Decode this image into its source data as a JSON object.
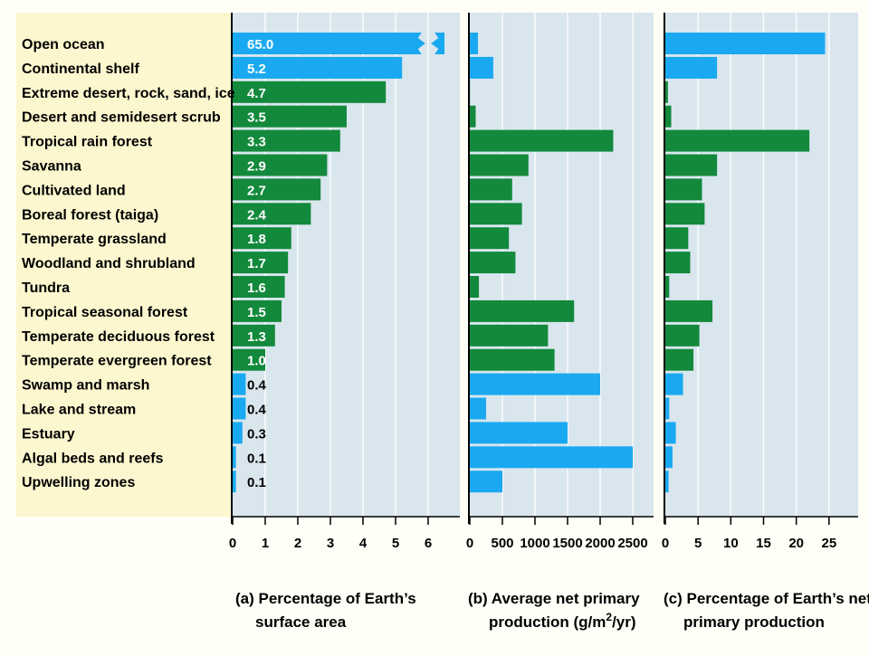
{
  "colors": {
    "background": "#fffef7",
    "label_area": "#fdf7cf",
    "panel_bg": "#d9e6ee",
    "gridline": "#ffffff",
    "aquatic": "#1aa9f0",
    "terrestrial": "#13893c",
    "axis": "#000000"
  },
  "chart_data": [
    {
      "type": "bar",
      "orientation": "horizontal",
      "panel_label": "(a) Percentage of Earth’s surface area",
      "xlabel_lines": [
        "(a) Percentage of Earth’s",
        "surface area"
      ],
      "xlim": [
        0,
        6.5
      ],
      "ticks": [
        0,
        1,
        2,
        3,
        4,
        5,
        6
      ],
      "axis_break": true,
      "categories": [
        "Open ocean",
        "Continental shelf",
        "Extreme desert, rock, sand, ice",
        "Desert and semidesert scrub",
        "Tropical rain forest",
        "Savanna",
        "Cultivated land",
        "Boreal forest (taiga)",
        "Temperate grassland",
        "Woodland and shrubland",
        "Tundra",
        "Tropical seasonal forest",
        "Temperate deciduous forest",
        "Temperate evergreen forest",
        "Swamp and marsh",
        "Lake and stream",
        "Estuary",
        "Algal beds and reefs",
        "Upwelling zones"
      ],
      "values": [
        65.0,
        5.2,
        4.7,
        3.5,
        3.3,
        2.9,
        2.7,
        2.4,
        1.8,
        1.7,
        1.6,
        1.5,
        1.3,
        1.0,
        0.4,
        0.4,
        0.3,
        0.1,
        0.1
      ],
      "value_labels": [
        "65.0",
        "5.2",
        "4.7",
        "3.5",
        "3.3",
        "2.9",
        "2.7",
        "2.4",
        "1.8",
        "1.7",
        "1.6",
        "1.5",
        "1.3",
        "1.0",
        "0.4",
        "0.4",
        "0.3",
        "0.1",
        "0.1"
      ],
      "bar_type": [
        "aquatic",
        "aquatic",
        "terrestrial",
        "terrestrial",
        "terrestrial",
        "terrestrial",
        "terrestrial",
        "terrestrial",
        "terrestrial",
        "terrestrial",
        "terrestrial",
        "terrestrial",
        "terrestrial",
        "terrestrial",
        "aquatic",
        "aquatic",
        "aquatic",
        "aquatic",
        "aquatic"
      ]
    },
    {
      "type": "bar",
      "orientation": "horizontal",
      "panel_label": "(b) Average net primary production (g/m2/yr)",
      "xlabel_lines": [
        "(b) Average net primary",
        "production (g/m",
        "2",
        "/yr)"
      ],
      "xlim": [
        0,
        3000
      ],
      "ticks": [
        0,
        500,
        1000,
        1500,
        2000,
        2500
      ],
      "values": [
        125,
        360,
        3,
        90,
        2200,
        900,
        650,
        800,
        600,
        700,
        140,
        1600,
        1200,
        1300,
        2000,
        250,
        1500,
        2500,
        500
      ]
    },
    {
      "type": "bar",
      "orientation": "horizontal",
      "panel_label": "(c) Percentage of Earth’s net primary production",
      "xlabel_lines": [
        "(c) Percentage of Earth’s net",
        "primary production"
      ],
      "xlim": [
        0,
        30
      ],
      "ticks": [
        0,
        5,
        10,
        15,
        20,
        25
      ],
      "values": [
        24.4,
        7.9,
        0.4,
        0.9,
        22.0,
        7.9,
        5.6,
        6.0,
        3.5,
        3.8,
        0.6,
        7.2,
        5.2,
        4.3,
        2.7,
        0.6,
        1.6,
        1.1,
        0.5
      ]
    }
  ]
}
